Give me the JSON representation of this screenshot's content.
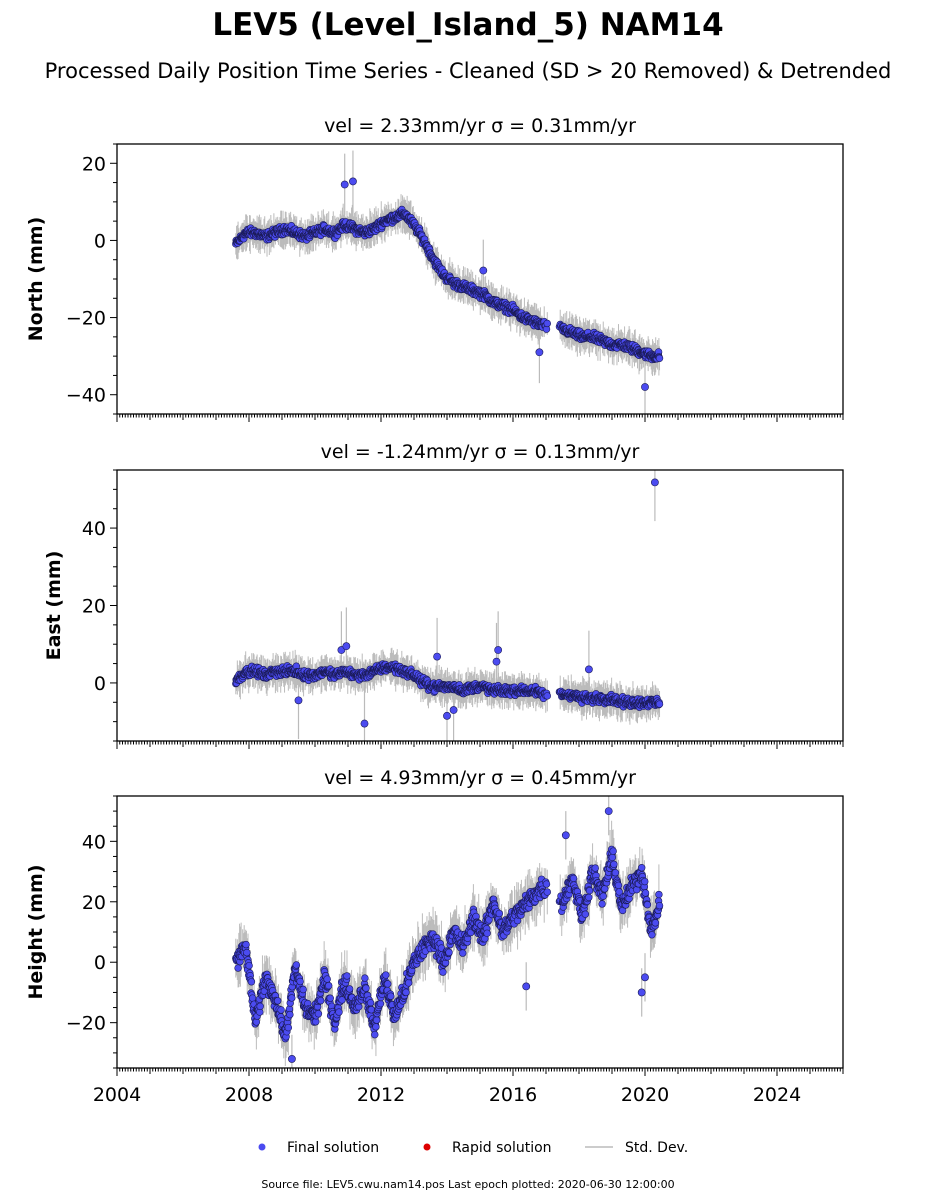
{
  "title": "LEV5 (Level_Island_5) NAM14",
  "subtitle": "Processed Daily Position Time Series - Cleaned (SD > 20 Removed) & Detrended",
  "legend": {
    "final": "Final solution",
    "rapid": "Rapid solution",
    "std": "Std. Dev."
  },
  "footer": "Source file: LEV5.cwu.nam14.pos  Last epoch plotted: 2020-06-30 12:00:00",
  "colors": {
    "final_marker": "#4b4bf0",
    "rapid_marker": "#dd0000",
    "std_dev": "#bbbbbb",
    "axis": "#000000"
  },
  "chart_data": [
    {
      "type": "scatter",
      "panel_title": "vel = 2.33mm/yr   σ = 0.31mm/yr",
      "ylabel": "North (mm)",
      "xlim": [
        2004,
        2026
      ],
      "ylim": [
        -45,
        25
      ],
      "yticks": [
        20,
        0,
        -20,
        -40
      ],
      "x_tick_labels": [],
      "series": [
        {
          "x": [
            2007.6,
            2007.9,
            2008.2,
            2008.5,
            2008.8,
            2009.1,
            2009.4,
            2009.7,
            2010.0,
            2010.3,
            2010.6,
            2010.9,
            2011.2,
            2011.5,
            2011.8,
            2012.1,
            2012.4,
            2012.7,
            2013.0,
            2013.3,
            2013.6,
            2013.9,
            2014.2,
            2014.5,
            2014.8,
            2015.1,
            2015.4,
            2015.7,
            2016.0,
            2016.3,
            2016.6,
            2016.9,
            2017.5,
            2017.8,
            2018.1,
            2018.4,
            2018.7,
            2019.0,
            2019.3,
            2019.6,
            2019.9,
            2020.2,
            2020.45
          ],
          "y": [
            -1,
            2,
            2,
            1,
            2,
            3,
            2,
            1,
            2,
            3,
            2,
            4,
            3,
            2,
            3,
            5,
            6,
            7,
            4,
            0,
            -5,
            -9,
            -11,
            -12,
            -13,
            -14,
            -16,
            -17,
            -18,
            -20,
            -21,
            -22,
            -23,
            -24,
            -25,
            -25,
            -26,
            -27,
            -27,
            -28,
            -29,
            -30,
            -30
          ]
        }
      ],
      "outliers": {
        "x": [
          2010.9,
          2011.15,
          2015.1,
          2016.8,
          2020.0
        ],
        "y": [
          14.5,
          15.3,
          -7.8,
          -29,
          -38
        ]
      }
    },
    {
      "type": "scatter",
      "panel_title": "vel = -1.24mm/yr   σ = 0.13mm/yr",
      "ylabel": "East (mm)",
      "xlim": [
        2004,
        2026
      ],
      "ylim": [
        -15,
        55
      ],
      "yticks": [
        40,
        20,
        0
      ],
      "x_tick_labels": [],
      "series": [
        {
          "x": [
            2007.6,
            2007.9,
            2008.2,
            2008.5,
            2008.8,
            2009.1,
            2009.4,
            2009.7,
            2010.0,
            2010.3,
            2010.6,
            2010.9,
            2011.2,
            2011.5,
            2011.8,
            2012.1,
            2012.4,
            2012.7,
            2013.0,
            2013.3,
            2013.6,
            2013.9,
            2014.2,
            2014.5,
            2014.8,
            2015.1,
            2015.4,
            2015.7,
            2016.0,
            2016.3,
            2016.6,
            2016.9,
            2017.5,
            2017.8,
            2018.1,
            2018.4,
            2018.7,
            2019.0,
            2019.3,
            2019.6,
            2019.9,
            2020.2,
            2020.45
          ],
          "y": [
            0.5,
            3,
            3,
            2,
            3,
            3,
            3,
            2,
            2,
            3,
            2,
            3,
            2,
            2,
            3,
            4,
            4,
            3,
            2,
            0,
            -1,
            -1,
            -1,
            -2,
            -1,
            -1,
            -2,
            -2,
            -2,
            -2,
            -2,
            -3,
            -3,
            -3,
            -4,
            -4,
            -4,
            -4,
            -5,
            -5,
            -5,
            -5,
            -5
          ]
        }
      ],
      "outliers": {
        "x": [
          2009.5,
          2010.8,
          2010.95,
          2011.5,
          2013.7,
          2014.0,
          2014.2,
          2015.5,
          2015.55,
          2018.3,
          2020.3
        ],
        "y": [
          -4.5,
          8.5,
          9.5,
          -10.5,
          6.8,
          -8.5,
          -7,
          5.5,
          8.5,
          3.5,
          51.8
        ]
      }
    },
    {
      "type": "scatter",
      "panel_title": "vel = 4.93mm/yr   σ = 0.45mm/yr",
      "ylabel": "Height (mm)",
      "xlim": [
        2004,
        2026
      ],
      "ylim": [
        -35,
        55
      ],
      "yticks": [
        40,
        20,
        0,
        -20
      ],
      "x_tick_labels": [
        "2004",
        "2008",
        "2012",
        "2016",
        "2020",
        "2024"
      ],
      "series": [
        {
          "x": [
            2007.6,
            2007.9,
            2008.2,
            2008.5,
            2008.8,
            2009.1,
            2009.4,
            2009.7,
            2010.0,
            2010.3,
            2010.6,
            2010.9,
            2011.2,
            2011.5,
            2011.8,
            2012.1,
            2012.4,
            2012.7,
            2013.0,
            2013.3,
            2013.6,
            2013.9,
            2014.2,
            2014.5,
            2014.8,
            2015.1,
            2015.4,
            2015.7,
            2016.0,
            2016.3,
            2016.6,
            2016.9,
            2017.5,
            2017.8,
            2018.1,
            2018.4,
            2018.7,
            2019.0,
            2019.3,
            2019.6,
            2019.9,
            2020.2,
            2020.45
          ],
          "y": [
            0,
            5,
            -20,
            -5,
            -12,
            -25,
            -2,
            -15,
            -18,
            -5,
            -20,
            -6,
            -15,
            -8,
            -22,
            -5,
            -18,
            -10,
            0,
            5,
            8,
            0,
            10,
            5,
            15,
            8,
            20,
            10,
            15,
            18,
            22,
            25,
            20,
            28,
            15,
            30,
            22,
            35,
            18,
            25,
            30,
            10,
            20
          ]
        }
      ],
      "outliers": {
        "x": [
          2009.3,
          2016.4,
          2017.6,
          2018.9,
          2019.9,
          2020.0
        ],
        "y": [
          -32,
          -8,
          42,
          50,
          -10,
          -5
        ]
      }
    }
  ]
}
